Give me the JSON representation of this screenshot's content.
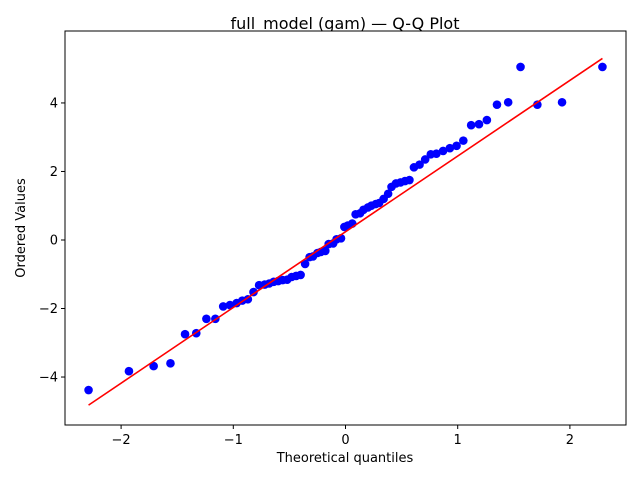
{
  "chart_data": {
    "type": "scatter",
    "title": "full_model (gam) — Q-Q Plot",
    "xlabel": "Theoretical quantiles",
    "ylabel": "Ordered Values",
    "xlim": [
      -2.5,
      2.5
    ],
    "ylim": [
      -5.4,
      6.1
    ],
    "xticks": [
      -2,
      -1,
      0,
      1,
      2
    ],
    "xtick_labels": [
      "−2",
      "−1",
      "0",
      "1",
      "2"
    ],
    "yticks": [
      -4,
      -2,
      0,
      2,
      4
    ],
    "ytick_labels": [
      "−4",
      "−2",
      "0",
      "2",
      "4"
    ],
    "grid": false,
    "points_color": "#0000ff",
    "line_color": "#ff0000",
    "fit_line": {
      "x": [
        -2.29,
        2.29
      ],
      "y": [
        -4.82,
        5.3
      ]
    },
    "points": {
      "x": [
        -2.29,
        -1.93,
        -1.71,
        -1.56,
        -1.43,
        -1.33,
        -1.24,
        -1.16,
        -1.09,
        -1.03,
        -0.97,
        -0.92,
        -0.87,
        -0.82,
        -0.77,
        -0.72,
        -0.68,
        -0.64,
        -0.6,
        -0.56,
        -0.52,
        -0.48,
        -0.44,
        -0.4,
        -0.36,
        -0.32,
        -0.29,
        -0.25,
        -0.22,
        -0.18,
        -0.15,
        -0.11,
        -0.08,
        -0.04,
        -0.01,
        0.02,
        0.06,
        0.09,
        0.13,
        0.16,
        0.2,
        0.23,
        0.27,
        0.3,
        0.34,
        0.38,
        0.41,
        0.45,
        0.49,
        0.53,
        0.57,
        0.61,
        0.66,
        0.71,
        0.76,
        0.81,
        0.87,
        0.93,
        0.99,
        1.05,
        1.12,
        1.19,
        1.26,
        1.35,
        1.45,
        1.56,
        1.71,
        1.93,
        2.29
      ],
      "y": [
        -4.38,
        -3.83,
        -3.68,
        -3.6,
        -2.75,
        -2.72,
        -2.3,
        -2.3,
        -1.94,
        -1.9,
        -1.84,
        -1.77,
        -1.73,
        -1.52,
        -1.32,
        -1.3,
        -1.27,
        -1.22,
        -1.2,
        -1.17,
        -1.16,
        -1.08,
        -1.05,
        -1.02,
        -0.7,
        -0.5,
        -0.48,
        -0.38,
        -0.35,
        -0.32,
        -0.12,
        -0.1,
        0.02,
        0.05,
        0.38,
        0.42,
        0.48,
        0.75,
        0.78,
        0.88,
        0.95,
        1.0,
        1.05,
        1.08,
        1.2,
        1.35,
        1.55,
        1.65,
        1.68,
        1.72,
        1.75,
        2.12,
        2.2,
        2.35,
        2.5,
        2.52,
        2.6,
        2.68,
        2.75,
        2.9,
        3.35,
        3.38,
        3.5,
        3.95,
        4.02,
        5.05,
        3.95,
        4.02,
        5.05
      ]
    }
  }
}
